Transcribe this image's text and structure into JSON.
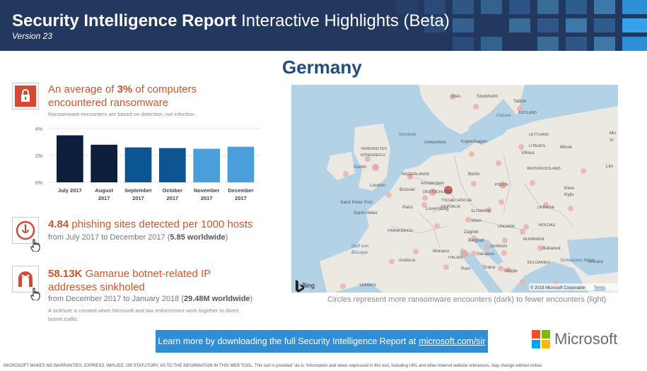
{
  "header": {
    "title_bold": "Security Intelligence Report",
    "title_rest": " Interactive Highlights (Beta)",
    "version": "Version 23",
    "bg_color": "#22385e"
  },
  "country": "Germany",
  "ransomware": {
    "icon": "lock-icon",
    "headline_prefix": "An average of ",
    "headline_value": "3%",
    "headline_suffix": " of computers encountered ransomware",
    "note": "Ransomware encounters are based on detection, not infection."
  },
  "chart_data": {
    "type": "bar",
    "categories": [
      "July 2017",
      "August 2017",
      "September 2017",
      "October 2017",
      "November 2017",
      "December 2017"
    ],
    "values": [
      3.5,
      2.8,
      2.6,
      2.55,
      2.5,
      2.65
    ],
    "colors": [
      "#0e1f3d",
      "#0e1f3d",
      "#0c5591",
      "#0c5591",
      "#4a9fdb",
      "#4a9fdb"
    ],
    "yticks": [
      "4%",
      "2%",
      "0%"
    ],
    "ylim": [
      0,
      4
    ],
    "grid": true
  },
  "phishing": {
    "icon": "phishing-hook-icon",
    "headline_value": "4.84",
    "headline_rest": " phishing sites detected per 1000 hosts",
    "sub_prefix": "from July 2017 to December 2017 (",
    "sub_bold": "5.85 worldwide",
    "sub_suffix": ")"
  },
  "botnet": {
    "icon": "botnet-worm-icon",
    "headline_value": "58.13K",
    "headline_rest": " Gamarue botnet-related IP addresses sinkholed",
    "sub_prefix": "from December 2017 to January 2018 (",
    "sub_bold": "29.48M worldwide",
    "sub_suffix": ")",
    "note": "A sinkhole is created when Microsoft and law enforcement work together to divert botnet traffic."
  },
  "map": {
    "labels": [
      "Oslo",
      "Stockholm",
      "Tallinn",
      "Ostsee",
      "ESTLAND",
      "Nordsee",
      "DANEMARK",
      "LETTLAND",
      "Kopenhagen",
      "LITAUEN",
      "Vilnius",
      "VEREINIGTES",
      "KÖNIGREICH",
      "Dublin",
      "Minsk",
      "NIEDERLANDE",
      "Berlin",
      "WEISSRUSSLAND",
      "London",
      "Amsterdam",
      "POLEN",
      "Brüssel",
      "DEUTSCHLAND",
      "Kiew",
      "Kyjiv",
      "Paris",
      "TSCHECHISCHE",
      "REPUBLIK",
      "Saint Peter Port",
      "Luxemburg",
      "SLOWAKEI",
      "UKRAINE",
      "Saint-Hélier",
      "Wien",
      "MOLDAU",
      "FRANKREICH",
      "UNGARN",
      "Zagreb",
      "RUMÄNIEN",
      "Belgrad",
      "Bukarest",
      "Golf von",
      "Biscaya",
      "Monaco",
      "Sarajevo",
      "SERBIEN",
      "Schwarzes Meer",
      "Andorra",
      "ITALIEN",
      "Rom",
      "Tirana",
      "Skopje",
      "BULGARIEN",
      "SPANIEN",
      "Ankara",
      "Mo",
      "Vi",
      "Litv"
    ],
    "provider": "Bing",
    "copyright": "© 2018 Microsoft Corporation",
    "terms": "Terms",
    "caption": "Circles represent more ransomware encounters (dark) to fewer encounters (light)"
  },
  "banner": {
    "text": "Learn more by downloading the full Security Intelligence Report at",
    "link": "microsoft.com/sir"
  },
  "logo": {
    "word": "Microsoft",
    "colors": [
      "#f25022",
      "#7fba00",
      "#00a4ef",
      "#ffb900"
    ]
  },
  "disclaimer": "MICROSOFT MAKES NO WARRANTIES, EXPRESS, IMPLIED, OR STATUTORY, AS TO THE INFORMATION IN THIS WEB TOOL. This tool is provided \"as-is.\"Information and views expressed in this tool, including URL and other Internet website references, may change without notice."
}
